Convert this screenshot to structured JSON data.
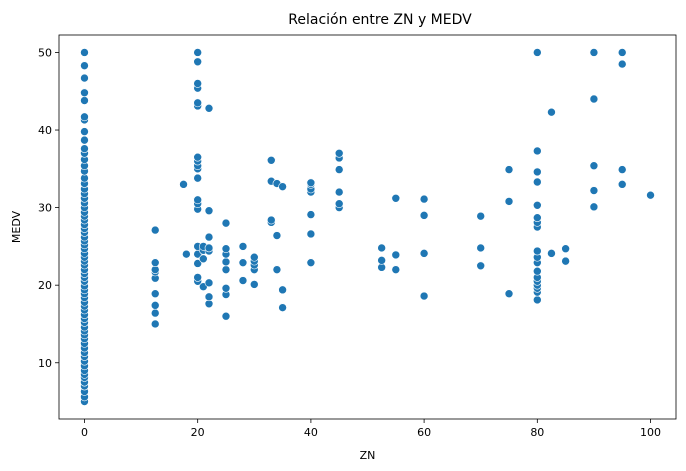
{
  "chart_data": {
    "type": "scatter",
    "title": "Relación entre ZN y MEDV",
    "xlabel": "ZN",
    "ylabel": "MEDV",
    "xlim": [
      -4.5,
      104.5
    ],
    "ylim": [
      2.75,
      52.25
    ],
    "xticks": [
      0,
      20,
      40,
      60,
      80,
      100
    ],
    "yticks": [
      10,
      20,
      30,
      40,
      50
    ],
    "marker_color": "#1f77b4",
    "series": [
      {
        "points": [
          [
            0,
            5.0
          ],
          [
            0,
            5.6
          ],
          [
            0,
            6.3
          ],
          [
            0,
            7.0
          ],
          [
            0,
            7.5
          ],
          [
            0,
            8.1
          ],
          [
            0,
            8.5
          ],
          [
            0,
            9.0
          ],
          [
            0,
            9.6
          ],
          [
            0,
            10.2
          ],
          [
            0,
            10.8
          ],
          [
            0,
            11.3
          ],
          [
            0,
            11.9
          ],
          [
            0,
            12.5
          ],
          [
            0,
            13.1
          ],
          [
            0,
            13.6
          ],
          [
            0,
            14.1
          ],
          [
            0,
            14.6
          ],
          [
            0,
            15.2
          ],
          [
            0,
            15.7
          ],
          [
            0,
            16.2
          ],
          [
            0,
            16.8
          ],
          [
            0,
            17.3
          ],
          [
            0,
            17.8
          ],
          [
            0,
            18.4
          ],
          [
            0,
            18.9
          ],
          [
            0,
            19.4
          ],
          [
            0,
            19.9
          ],
          [
            0,
            20.5
          ],
          [
            0,
            21.0
          ],
          [
            0,
            21.5
          ],
          [
            0,
            22.0
          ],
          [
            0,
            22.6
          ],
          [
            0,
            23.1
          ],
          [
            0,
            23.6
          ],
          [
            0,
            24.1
          ],
          [
            0,
            24.7
          ],
          [
            0,
            25.2
          ],
          [
            0,
            25.7
          ],
          [
            0,
            26.2
          ],
          [
            0,
            26.8
          ],
          [
            0,
            27.3
          ],
          [
            0,
            27.8
          ],
          [
            0,
            28.4
          ],
          [
            0,
            28.9
          ],
          [
            0,
            29.4
          ],
          [
            0,
            30.0
          ],
          [
            0,
            30.6
          ],
          [
            0,
            31.2
          ],
          [
            0,
            31.8
          ],
          [
            0,
            32.4
          ],
          [
            0,
            33.1
          ],
          [
            0,
            33.8
          ],
          [
            0,
            34.7
          ],
          [
            0,
            35.4
          ],
          [
            0,
            36.2
          ],
          [
            0,
            37.0
          ],
          [
            0,
            37.6
          ],
          [
            0,
            38.7
          ],
          [
            0,
            39.8
          ],
          [
            0,
            41.3
          ],
          [
            0,
            41.7
          ],
          [
            0,
            43.8
          ],
          [
            0,
            44.8
          ],
          [
            0,
            46.7
          ],
          [
            0,
            48.3
          ],
          [
            0,
            50.0
          ],
          [
            12.5,
            15.0
          ],
          [
            12.5,
            16.4
          ],
          [
            12.5,
            17.4
          ],
          [
            12.5,
            18.9
          ],
          [
            12.5,
            20.9
          ],
          [
            12.5,
            21.7
          ],
          [
            12.5,
            22.0
          ],
          [
            12.5,
            22.9
          ],
          [
            12.5,
            27.1
          ],
          [
            17.5,
            33.0
          ],
          [
            18,
            24.0
          ],
          [
            20,
            20.5
          ],
          [
            20,
            21.0
          ],
          [
            20,
            22.8
          ],
          [
            20,
            24.0
          ],
          [
            20,
            25.0
          ],
          [
            20,
            29.8
          ],
          [
            20,
            30.5
          ],
          [
            20,
            31.0
          ],
          [
            20,
            33.8
          ],
          [
            20,
            35.0
          ],
          [
            20,
            35.4
          ],
          [
            20,
            36.0
          ],
          [
            20,
            36.5
          ],
          [
            20,
            43.1
          ],
          [
            20,
            43.5
          ],
          [
            20,
            45.4
          ],
          [
            20,
            46.0
          ],
          [
            20,
            48.8
          ],
          [
            20,
            50.0
          ],
          [
            21,
            19.8
          ],
          [
            21,
            23.4
          ],
          [
            21,
            24.5
          ],
          [
            21,
            25.0
          ],
          [
            22,
            17.6
          ],
          [
            22,
            18.5
          ],
          [
            22,
            20.3
          ],
          [
            22,
            24.4
          ],
          [
            22,
            24.8
          ],
          [
            22,
            26.2
          ],
          [
            22,
            29.6
          ],
          [
            22,
            42.8
          ],
          [
            25,
            16.0
          ],
          [
            25,
            18.8
          ],
          [
            25,
            19.6
          ],
          [
            25,
            22.0
          ],
          [
            25,
            23.0
          ],
          [
            25,
            24.0
          ],
          [
            25,
            24.7
          ],
          [
            25,
            28.0
          ],
          [
            28,
            20.6
          ],
          [
            28,
            22.9
          ],
          [
            28,
            25.0
          ],
          [
            30,
            20.1
          ],
          [
            30,
            22.0
          ],
          [
            30,
            22.6
          ],
          [
            30,
            23.1
          ],
          [
            30,
            23.6
          ],
          [
            33,
            28.1
          ],
          [
            33,
            28.4
          ],
          [
            33,
            33.4
          ],
          [
            33,
            36.1
          ],
          [
            34,
            22.0
          ],
          [
            34,
            26.4
          ],
          [
            34,
            33.1
          ],
          [
            35,
            17.1
          ],
          [
            35,
            19.4
          ],
          [
            35,
            32.7
          ],
          [
            40,
            22.9
          ],
          [
            40,
            26.6
          ],
          [
            40,
            29.1
          ],
          [
            40,
            32.0
          ],
          [
            40,
            32.4
          ],
          [
            40,
            33.0
          ],
          [
            40,
            33.2
          ],
          [
            45,
            30.0
          ],
          [
            45,
            30.5
          ],
          [
            45,
            32.0
          ],
          [
            45,
            34.9
          ],
          [
            45,
            36.4
          ],
          [
            45,
            37.0
          ],
          [
            52.5,
            22.3
          ],
          [
            52.5,
            23.2
          ],
          [
            52.5,
            24.8
          ],
          [
            55,
            22.0
          ],
          [
            55,
            23.9
          ],
          [
            55,
            31.2
          ],
          [
            60,
            18.6
          ],
          [
            60,
            24.1
          ],
          [
            60,
            29.0
          ],
          [
            60,
            31.1
          ],
          [
            70,
            22.5
          ],
          [
            70,
            24.8
          ],
          [
            70,
            28.9
          ],
          [
            75,
            18.9
          ],
          [
            75,
            30.8
          ],
          [
            75,
            34.9
          ],
          [
            80,
            18.1
          ],
          [
            80,
            19.1
          ],
          [
            80,
            19.6
          ],
          [
            80,
            20.0
          ],
          [
            80,
            20.5
          ],
          [
            80,
            21.0
          ],
          [
            80,
            21.8
          ],
          [
            80,
            22.9
          ],
          [
            80,
            23.6
          ],
          [
            80,
            24.4
          ],
          [
            80,
            27.5
          ],
          [
            80,
            28.1
          ],
          [
            80,
            28.7
          ],
          [
            80,
            30.3
          ],
          [
            80,
            33.3
          ],
          [
            80,
            34.6
          ],
          [
            80,
            37.3
          ],
          [
            80,
            50.0
          ],
          [
            82.5,
            24.1
          ],
          [
            82.5,
            42.3
          ],
          [
            85,
            23.1
          ],
          [
            85,
            24.7
          ],
          [
            90,
            30.1
          ],
          [
            90,
            32.2
          ],
          [
            90,
            35.4
          ],
          [
            90,
            44.0
          ],
          [
            90,
            50.0
          ],
          [
            95,
            33.0
          ],
          [
            95,
            34.9
          ],
          [
            95,
            48.5
          ],
          [
            95,
            50.0
          ],
          [
            100,
            31.6
          ]
        ]
      }
    ]
  }
}
